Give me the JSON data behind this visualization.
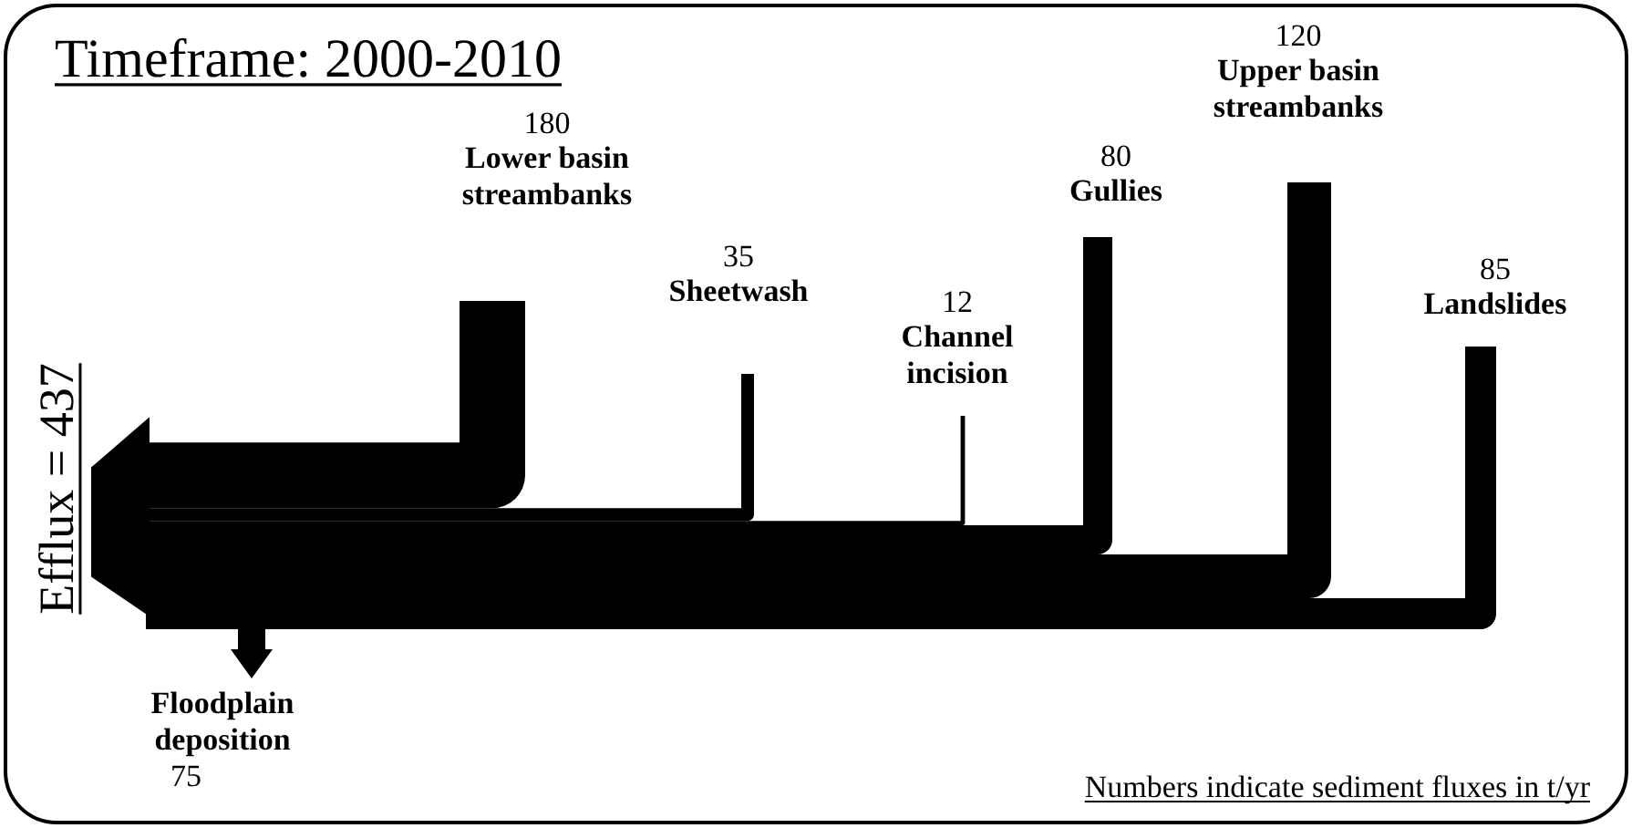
{
  "chart_data": {
    "type": "other",
    "title": "Timeframe: 2000-2010",
    "categories": [
      "Lower basin streambanks",
      "Sheetwash",
      "Channel incision",
      "Gullies",
      "Upper basin streambanks",
      "Landslides",
      "Floodplain deposition"
    ],
    "series": [
      {
        "color": "#000000",
        "values": [
          180,
          35,
          12,
          80,
          120,
          85,
          null
        ]
      },
      {
        "color": "#000000",
        "values": [
          null,
          null,
          null,
          null,
          null,
          null,
          75
        ]
      }
    ],
    "data_labels": true,
    "annotations": [
      "Efflux = 437",
      "Numbers indicate sediment fluxes in t/yr"
    ]
  }
}
